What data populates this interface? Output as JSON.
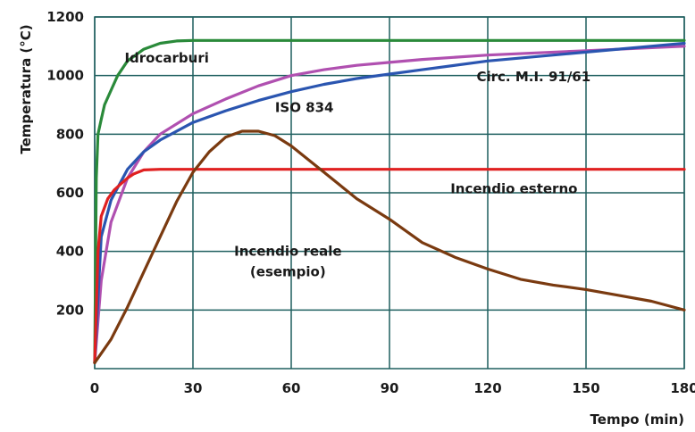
{
  "chart_data": {
    "type": "line",
    "title": "",
    "xlabel": "Tempo (min)",
    "ylabel": "Temperatura (°C)",
    "xlim": [
      0,
      180
    ],
    "ylim": [
      0,
      1200
    ],
    "xticks": [
      "0",
      "30",
      "60",
      "90",
      "120",
      "150",
      "180"
    ],
    "yticks": [
      "200",
      "400",
      "600",
      "800",
      "1000",
      "1200"
    ],
    "grid": true,
    "grid_color": "#1f5f5f",
    "series": [
      {
        "name": "Idrocarburi",
        "color": "#2a8a3a",
        "x": [
          0,
          0.5,
          1,
          2,
          3,
          5,
          7,
          10,
          15,
          20,
          25,
          30,
          40,
          60,
          90,
          120,
          150,
          180
        ],
        "y": [
          20,
          650,
          800,
          850,
          900,
          950,
          1000,
          1050,
          1090,
          1110,
          1118,
          1120,
          1120,
          1120,
          1120,
          1120,
          1120,
          1120
        ]
      },
      {
        "name": "Circ. M.I. 91/61",
        "color": "#b050b0",
        "x": [
          0,
          2,
          5,
          10,
          15,
          20,
          30,
          40,
          50,
          60,
          70,
          80,
          90,
          100,
          120,
          150,
          180
        ],
        "y": [
          20,
          300,
          500,
          650,
          740,
          800,
          870,
          920,
          965,
          1000,
          1020,
          1035,
          1045,
          1055,
          1070,
          1085,
          1100
        ]
      },
      {
        "name": "ISO 834",
        "color": "#2a55b0",
        "x": [
          0,
          2,
          5,
          10,
          15,
          20,
          30,
          40,
          50,
          60,
          70,
          80,
          90,
          100,
          120,
          150,
          180
        ],
        "y": [
          20,
          450,
          575,
          680,
          740,
          780,
          840,
          880,
          915,
          945,
          970,
          990,
          1005,
          1020,
          1050,
          1080,
          1110
        ]
      },
      {
        "name": "Incendio esterno",
        "color": "#e02020",
        "x": [
          0,
          1,
          2,
          4,
          6,
          8,
          10,
          12,
          15,
          20,
          30,
          60,
          90,
          120,
          150,
          180
        ],
        "y": [
          20,
          400,
          520,
          580,
          610,
          630,
          650,
          665,
          678,
          680,
          680,
          680,
          680,
          680,
          680,
          680
        ]
      },
      {
        "name": "Incendio reale\n(esempio)",
        "color": "#7a3a10",
        "x": [
          0,
          5,
          10,
          15,
          20,
          25,
          30,
          35,
          40,
          45,
          50,
          55,
          60,
          70,
          80,
          90,
          100,
          110,
          120,
          130,
          140,
          150,
          160,
          170,
          180
        ],
        "y": [
          20,
          100,
          210,
          330,
          450,
          570,
          670,
          740,
          790,
          810,
          810,
          795,
          760,
          670,
          580,
          510,
          430,
          380,
          340,
          305,
          285,
          270,
          250,
          230,
          200
        ]
      }
    ],
    "annotations": [
      {
        "text": "Idrocarburi",
        "x": 22,
        "y": 1045
      },
      {
        "text": "Circ. M.I. 91/61",
        "x": 134,
        "y": 980
      },
      {
        "text": "ISO 834",
        "x": 64,
        "y": 875
      },
      {
        "text": "Incendio esterno",
        "x": 128,
        "y": 598
      },
      {
        "text": "Incendio reale",
        "x": 59,
        "y": 385
      },
      {
        "text": "(esempio)",
        "x": 59,
        "y": 315
      }
    ]
  }
}
